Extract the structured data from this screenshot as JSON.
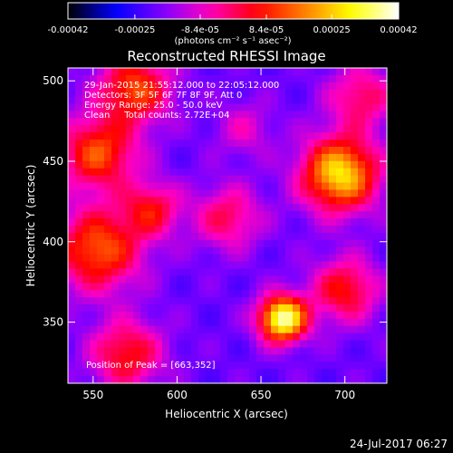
{
  "chart_data": {
    "type": "heatmap",
    "title": "Reconstructed RHESSI Image",
    "xlabel": "Heliocentric X (arcsec)",
    "ylabel": "Heliocentric Y (arcsec)",
    "xlim": [
      535,
      725
    ],
    "ylim": [
      312,
      508
    ],
    "x_ticks": [
      550,
      600,
      650,
      700
    ],
    "y_ticks": [
      350,
      400,
      450,
      500
    ],
    "colorbar": {
      "ticks": [
        "-0.00042",
        "-0.00025",
        "-8.4e-05",
        "8.4e-05",
        "0.00025",
        "0.00042"
      ],
      "tick_values": [
        -0.00042,
        -0.00025,
        -8.4e-05,
        8.4e-05,
        0.00025,
        0.00042
      ],
      "range": [
        -0.00042,
        0.00042
      ],
      "units_label": "(photons cm⁻² s⁻¹ asec⁻²)",
      "colormap": [
        "#000000",
        "#0000ff",
        "#7f00ff",
        "#ff00c0",
        "#ff0000",
        "#ff7f00",
        "#ffff00",
        "#ffffff"
      ]
    },
    "info_lines": [
      "29-Jan-2015 21:55:12.000 to 22:05:12.000",
      "Detectors: 3F 5F 6F 7F 8F 9F, Att 0",
      "Energy Range: 25.0 - 50.0 keV",
      "Clean     Total counts: 2.72E+04"
    ],
    "peak_label": "Position of Peak = [663,352]",
    "peak": [
      663,
      352
    ],
    "sources": [
      {
        "x": 663,
        "y": 352,
        "amp": 1.0,
        "w": 10
      },
      {
        "x": 697,
        "y": 442,
        "amp": 0.82,
        "w": 16
      },
      {
        "x": 553,
        "y": 395,
        "amp": 0.58,
        "w": 18
      },
      {
        "x": 553,
        "y": 455,
        "amp": 0.55,
        "w": 16
      },
      {
        "x": 575,
        "y": 495,
        "amp": 0.55,
        "w": 15
      },
      {
        "x": 585,
        "y": 420,
        "amp": 0.4,
        "w": 12
      },
      {
        "x": 630,
        "y": 415,
        "amp": 0.35,
        "w": 14
      },
      {
        "x": 570,
        "y": 330,
        "amp": 0.45,
        "w": 15
      },
      {
        "x": 700,
        "y": 370,
        "amp": 0.45,
        "w": 14
      },
      {
        "x": 710,
        "y": 490,
        "amp": 0.35,
        "w": 14
      },
      {
        "x": 640,
        "y": 470,
        "amp": 0.2,
        "w": 12
      }
    ]
  },
  "footer": {
    "date": "24-Jul-2017 06:27"
  }
}
